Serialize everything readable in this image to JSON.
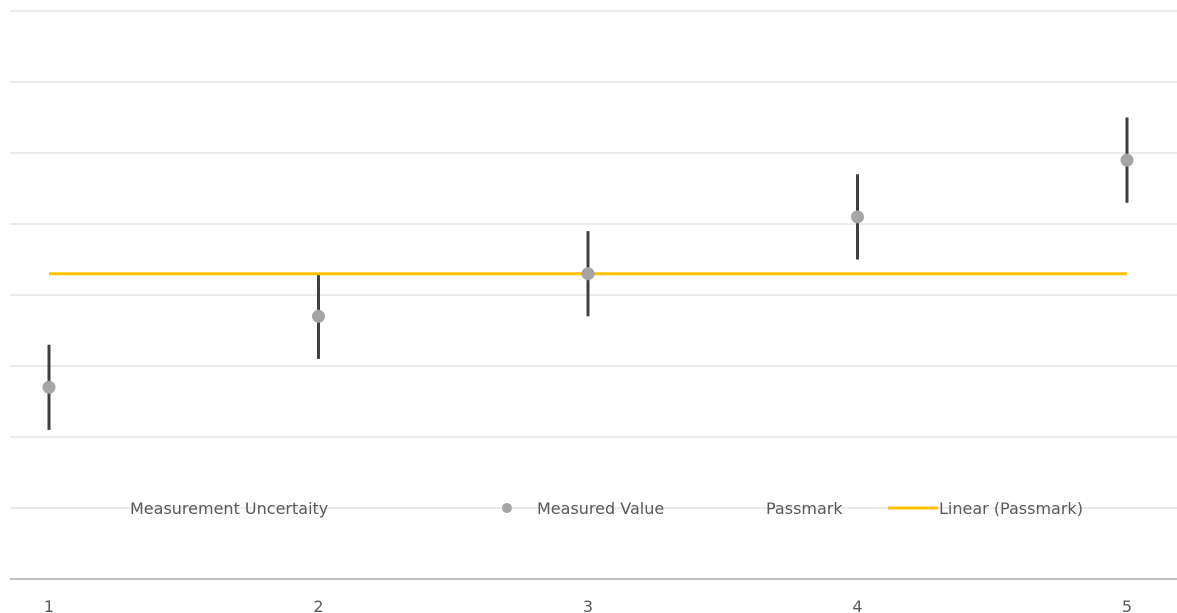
{
  "chart_data": {
    "type": "scatter",
    "x": [
      1,
      2,
      3,
      4,
      5
    ],
    "series": [
      {
        "name": "Measured Value",
        "kind": "points-with-error-bars",
        "color": "#a5a5a5",
        "y": [
          0.7,
          1.7,
          2.3,
          3.1,
          3.9
        ],
        "error_low": [
          0.6,
          0.6,
          0.6,
          0.6,
          0.6
        ],
        "error_high": [
          0.6,
          0.6,
          0.6,
          0.6,
          0.6
        ],
        "error_bar_name": "Measurement Uncertaity",
        "error_bar_color": "#404040"
      },
      {
        "name": "Passmark",
        "kind": "trendline-source",
        "y": [
          2.3,
          2.3,
          2.3,
          2.3,
          2.3
        ]
      },
      {
        "name": "Linear (Passmark)",
        "kind": "line",
        "color": "#ffc000",
        "y": [
          2.3,
          2.3,
          2.3,
          2.3,
          2.3
        ]
      }
    ],
    "xlim": [
      1,
      5
    ],
    "ylim": [
      -2,
      6
    ],
    "grid": true,
    "legend": {
      "position": "bottom",
      "entries": [
        "Measurement Uncertaity",
        "Measured Value",
        "Passmark",
        "Linear (Passmark)"
      ]
    },
    "x_tick_labels": [
      "1",
      "2",
      "3",
      "4",
      "5"
    ]
  }
}
